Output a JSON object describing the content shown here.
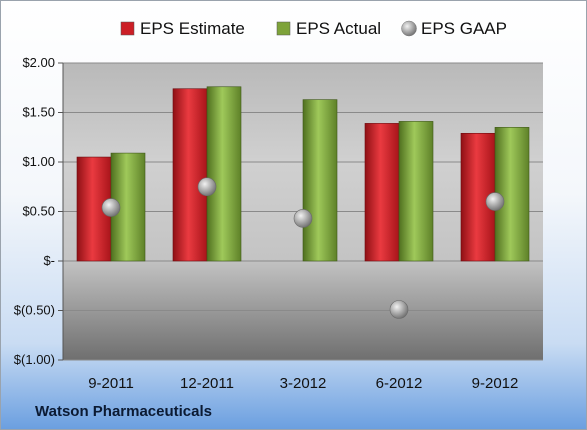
{
  "footer": {
    "company": "Watson Pharmaceuticals"
  },
  "colors": {
    "estimate": "#cc1f26",
    "actual": "#7ea33a",
    "gaap": "#a9a9a9"
  },
  "chart_data": {
    "type": "bar",
    "categories": [
      "9-2011",
      "12-2011",
      "3-2012",
      "6-2012",
      "9-2012"
    ],
    "series": [
      {
        "name": "EPS Estimate",
        "kind": "bar",
        "values": [
          1.05,
          1.74,
          null,
          1.39,
          1.29
        ]
      },
      {
        "name": "EPS Actual",
        "kind": "bar",
        "values": [
          1.09,
          1.76,
          1.63,
          1.41,
          1.35
        ]
      },
      {
        "name": "EPS GAAP",
        "kind": "scatter",
        "values": [
          0.54,
          0.75,
          0.43,
          -0.49,
          0.6
        ]
      }
    ],
    "y_ticks": [
      2.0,
      1.5,
      1.0,
      0.5,
      0,
      -0.5,
      -1.0
    ],
    "y_tick_labels": [
      "$2.00",
      "$1.50",
      "$1.00",
      "$0.50",
      "$-",
      "$(0.50)",
      "$(1.00)"
    ],
    "ylim": [
      -1.0,
      2.0
    ],
    "grid": true,
    "legend_position": "top"
  }
}
